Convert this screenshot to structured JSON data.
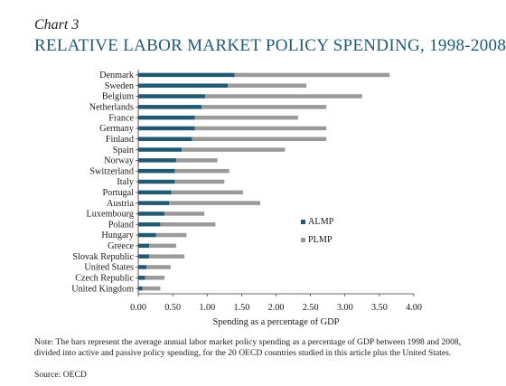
{
  "header": {
    "chart_label": "Chart 3",
    "title": "RELATIVE LABOR MARKET POLICY SPENDING, 1998-2008"
  },
  "footer": {
    "note": "Note: The bars represent the average annual labor market policy spending as a percentage of GDP between 1998 and 2008, divided into active and passive policy spending, for the 20 OECD countries studied in this article plus the United States.",
    "source": "Source: OECD"
  },
  "chart_data": {
    "type": "bar",
    "orientation": "horizontal",
    "stacked": true,
    "categories": [
      "Denmark",
      "Sweden",
      "Belgium",
      "Netherlands",
      "France",
      "Germany",
      "Finland",
      "Spain",
      "Norway",
      "Switzerland",
      "Italy",
      "Portugal",
      "Austria",
      "Luxembourg",
      "Poland",
      "Hungary",
      "Greece",
      "Slovak Republic",
      "United States",
      "Czech Republic",
      "United Kingdom"
    ],
    "series": [
      {
        "name": "ALMP",
        "color": "#1f5a72",
        "values": [
          1.4,
          1.3,
          0.97,
          0.92,
          0.82,
          0.82,
          0.78,
          0.63,
          0.55,
          0.53,
          0.53,
          0.48,
          0.45,
          0.38,
          0.32,
          0.26,
          0.16,
          0.16,
          0.12,
          0.1,
          0.06
        ]
      },
      {
        "name": "PLMP",
        "color": "#9a9a9a",
        "values": [
          2.25,
          1.14,
          2.28,
          1.81,
          1.5,
          1.91,
          1.95,
          1.5,
          0.6,
          0.79,
          0.72,
          1.04,
          1.32,
          0.58,
          0.8,
          0.44,
          0.39,
          0.51,
          0.35,
          0.28,
          0.26
        ]
      }
    ],
    "xlabel": "Spending as a percentage of GDP",
    "ylabel": "",
    "xlim": [
      0,
      4
    ],
    "xticks": [
      "0.00",
      "0.50",
      "1.00",
      "1.50",
      "2.00",
      "2.50",
      "3.00",
      "3.50",
      "4.00"
    ],
    "grid": false,
    "legend_position": "right"
  }
}
